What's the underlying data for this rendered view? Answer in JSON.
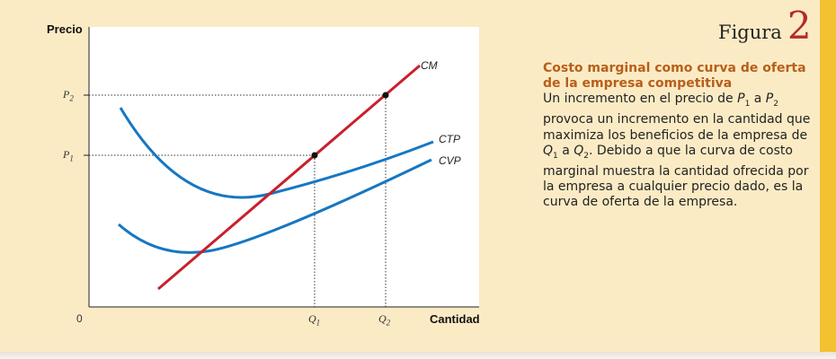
{
  "figure": {
    "word": "Figura",
    "number": "2"
  },
  "caption": {
    "title": "Costo marginal como curva de oferta de la empresa competitiva",
    "body_1": "Un incremento en el precio de ",
    "p1": "P",
    "p1_sub": "1",
    "body_2": " a ",
    "p2": "P",
    "p2_sub": "2",
    "body_3": " provoca un incremento en la cantidad que maximiza los beneficios de la empresa de ",
    "q1": "Q",
    "q1_sub": "1",
    "body_4": " a ",
    "q2": "Q",
    "q2_sub": "2",
    "body_5": ". Debido a que la curva de costo marginal muestra la cantidad ofrecida por la empresa a cualquier precio dado, es la curva de oferta de la empresa."
  },
  "axes": {
    "ylabel": "Precio",
    "xlabel": "Cantidad",
    "origin": "0",
    "y_ticks": [
      {
        "letter": "P",
        "sub": "2"
      },
      {
        "letter": "P",
        "sub": "1"
      }
    ],
    "x_ticks": [
      {
        "letter": "Q",
        "sub": "1"
      },
      {
        "letter": "Q",
        "sub": "2"
      }
    ]
  },
  "curves": {
    "cm": {
      "label": "CM",
      "color": "#c8202c"
    },
    "ctp": {
      "label": "CTP",
      "color": "#1677c2"
    },
    "cvp": {
      "label": "CVP",
      "color": "#1677c2"
    }
  },
  "colors": {
    "background": "#fbebc5",
    "accent_bar": "#f2c230",
    "caption_title": "#b75f1a",
    "figure_number": "#b32a2a"
  }
}
